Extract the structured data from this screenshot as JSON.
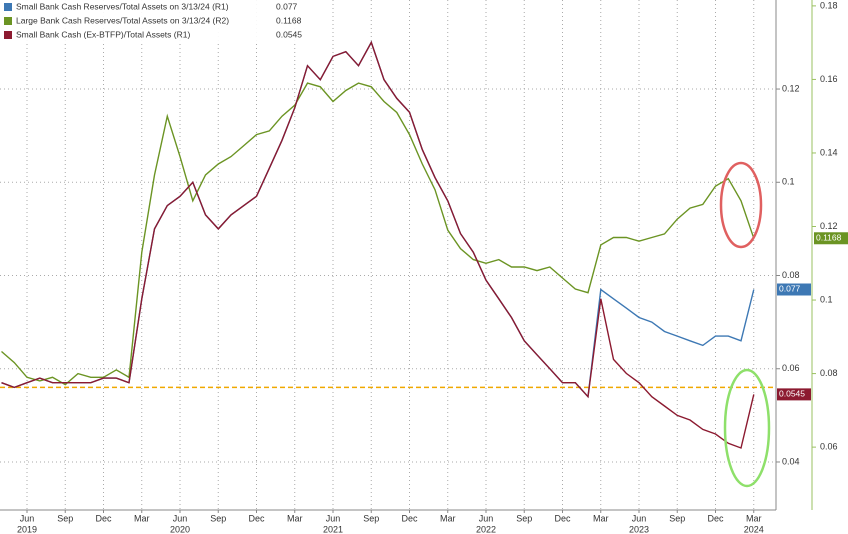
{
  "chart_data": {
    "type": "line",
    "x": [
      "2019-04",
      "2019-05",
      "2019-06",
      "2019-07",
      "2019-08",
      "2019-09",
      "2019-10",
      "2019-11",
      "2019-12",
      "2020-01",
      "2020-02",
      "2020-03",
      "2020-04",
      "2020-05",
      "2020-06",
      "2020-07",
      "2020-08",
      "2020-09",
      "2020-10",
      "2020-11",
      "2020-12",
      "2021-01",
      "2021-02",
      "2021-03",
      "2021-04",
      "2021-05",
      "2021-06",
      "2021-07",
      "2021-08",
      "2021-09",
      "2021-10",
      "2021-11",
      "2021-12",
      "2022-01",
      "2022-02",
      "2022-03",
      "2022-04",
      "2022-05",
      "2022-06",
      "2022-07",
      "2022-08",
      "2022-09",
      "2022-10",
      "2022-11",
      "2022-12",
      "2023-01",
      "2023-02",
      "2023-03",
      "2023-04",
      "2023-05",
      "2023-06",
      "2023-07",
      "2023-08",
      "2023-09",
      "2023-10",
      "2023-11",
      "2023-12",
      "2024-01",
      "2024-02",
      "2024-03"
    ],
    "series": [
      {
        "name": "Small Bank Cash Reserves/Total Assets on 3/13/24 (R1)",
        "legend_value": 0.077,
        "color": "#3d78b4",
        "axis": "y",
        "values": [
          0.057,
          0.056,
          0.057,
          0.058,
          0.057,
          0.057,
          0.057,
          0.057,
          0.058,
          0.058,
          0.057,
          0.075,
          0.09,
          0.095,
          0.097,
          0.1,
          0.093,
          0.09,
          0.093,
          0.095,
          0.097,
          0.103,
          0.109,
          0.116,
          0.125,
          0.122,
          0.127,
          0.128,
          0.125,
          0.13,
          0.122,
          0.118,
          0.115,
          0.107,
          0.101,
          0.096,
          0.089,
          0.085,
          0.079,
          0.075,
          0.071,
          0.066,
          0.063,
          0.06,
          0.057,
          0.057,
          0.054,
          0.077,
          0.075,
          0.073,
          0.071,
          0.07,
          0.068,
          0.067,
          0.066,
          0.065,
          0.067,
          0.067,
          0.066,
          0.077
        ]
      },
      {
        "name": "Large Bank Cash Reserves/Total Assets on 3/13/24 (R2)",
        "legend_value": 0.1168,
        "color": "#6b9423",
        "axis": "y2",
        "values": [
          0.086,
          0.083,
          0.079,
          0.078,
          0.079,
          0.077,
          0.08,
          0.079,
          0.079,
          0.081,
          0.079,
          0.113,
          0.134,
          0.15,
          0.139,
          0.127,
          0.134,
          0.137,
          0.139,
          0.142,
          0.145,
          0.146,
          0.15,
          0.153,
          0.159,
          0.158,
          0.154,
          0.157,
          0.159,
          0.158,
          0.154,
          0.151,
          0.145,
          0.137,
          0.13,
          0.119,
          0.114,
          0.111,
          0.11,
          0.111,
          0.109,
          0.109,
          0.108,
          0.109,
          0.106,
          0.103,
          0.102,
          0.115,
          0.117,
          0.117,
          0.116,
          0.117,
          0.118,
          0.122,
          0.125,
          0.126,
          0.131,
          0.133,
          0.127,
          0.1168
        ]
      },
      {
        "name": "Small Bank Cash (Ex-BTFP)/Total Assets (R1)",
        "legend_value": 0.0545,
        "color": "#8c1a30",
        "axis": "y",
        "values": [
          0.057,
          0.056,
          0.057,
          0.058,
          0.057,
          0.057,
          0.057,
          0.057,
          0.058,
          0.058,
          0.057,
          0.075,
          0.09,
          0.095,
          0.097,
          0.1,
          0.093,
          0.09,
          0.093,
          0.095,
          0.097,
          0.103,
          0.109,
          0.116,
          0.125,
          0.122,
          0.127,
          0.128,
          0.125,
          0.13,
          0.122,
          0.118,
          0.115,
          0.107,
          0.101,
          0.096,
          0.089,
          0.085,
          0.079,
          0.075,
          0.071,
          0.066,
          0.063,
          0.06,
          0.057,
          0.057,
          0.054,
          0.075,
          0.062,
          0.059,
          0.057,
          0.054,
          0.052,
          0.05,
          0.049,
          0.047,
          0.046,
          0.044,
          0.043,
          0.0545
        ]
      }
    ],
    "ylim": [
      0.0297,
      0.1391
    ],
    "yticks": [
      0.04,
      0.06,
      0.08,
      0.1,
      0.12
    ],
    "y2lim": [
      0.0429,
      0.1816
    ],
    "y2ticks": [
      0.06,
      0.08,
      0.1,
      0.12,
      0.14,
      0.16,
      0.18
    ],
    "xticks": [
      {
        "value": "2019-06",
        "label": "Jun"
      },
      {
        "value": "2019-09",
        "label": "Sep"
      },
      {
        "value": "2019-12",
        "label": "Dec"
      },
      {
        "value": "2020-03",
        "label": "Mar"
      },
      {
        "value": "2020-06",
        "label": "Jun"
      },
      {
        "value": "2020-09",
        "label": "Sep"
      },
      {
        "value": "2020-12",
        "label": "Dec"
      },
      {
        "value": "2021-03",
        "label": "Mar"
      },
      {
        "value": "2021-06",
        "label": "Jun"
      },
      {
        "value": "2021-09",
        "label": "Sep"
      },
      {
        "value": "2021-12",
        "label": "Dec"
      },
      {
        "value": "2022-03",
        "label": "Mar"
      },
      {
        "value": "2022-06",
        "label": "Jun"
      },
      {
        "value": "2022-09",
        "label": "Sep"
      },
      {
        "value": "2022-12",
        "label": "Dec"
      },
      {
        "value": "2023-03",
        "label": "Mar"
      },
      {
        "value": "2023-06",
        "label": "Jun"
      },
      {
        "value": "2023-09",
        "label": "Sep"
      },
      {
        "value": "2023-12",
        "label": "Dec"
      },
      {
        "value": "2024-03",
        "label": "Mar"
      }
    ],
    "year_ticks": [
      {
        "value": "2019-06",
        "label": "2019"
      },
      {
        "value": "2020-06",
        "label": "2020"
      },
      {
        "value": "2021-06",
        "label": "2021"
      },
      {
        "value": "2022-06",
        "label": "2022"
      },
      {
        "value": "2023-06",
        "label": "2023"
      },
      {
        "value": "2024-03",
        "label": "2024"
      }
    ],
    "hline": {
      "value": 0.056,
      "color": "#f0a800"
    },
    "grid": true
  }
}
